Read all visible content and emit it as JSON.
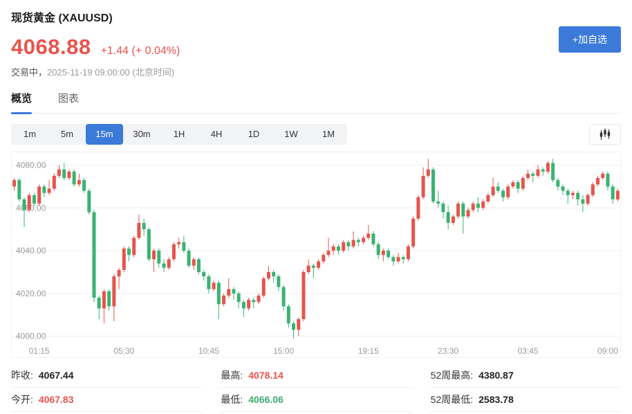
{
  "header": {
    "title": "现货黄金 (XAUUSD)",
    "price": "4068.88",
    "change": "+1.44 (+ 0.04%)",
    "status_label": "交易中，",
    "timestamp": "2025-11-19 09:00:00 (北京时间)",
    "add_watchlist_label": "+加自选"
  },
  "tabs": [
    {
      "id": "overview",
      "label": "概览",
      "active": true
    },
    {
      "id": "chart",
      "label": "图表",
      "active": false
    }
  ],
  "timeframes": [
    {
      "label": "1m",
      "active": false
    },
    {
      "label": "5m",
      "active": false
    },
    {
      "label": "15m",
      "active": true
    },
    {
      "label": "30m",
      "active": false
    },
    {
      "label": "1H",
      "active": false
    },
    {
      "label": "4H",
      "active": false
    },
    {
      "label": "1D",
      "active": false
    },
    {
      "label": "1W",
      "active": false
    },
    {
      "label": "1M",
      "active": false
    }
  ],
  "colors": {
    "accent_blue": "#3b7ad9",
    "price_red": "#ea534d",
    "text_green": "#3eac73",
    "text_black": "#222222",
    "candle_up": "#e4554d",
    "candle_down": "#3bb273"
  },
  "chart_data": {
    "type": "candlestick",
    "interval": "15m",
    "ylim": [
      3996,
      4086
    ],
    "y_ticks": [
      4080,
      4060,
      4040,
      4020,
      4000
    ],
    "y_tick_labels": [
      "4080.00",
      "4060.00",
      "4040.00",
      "4020.00",
      "4000.00"
    ],
    "x_tick_indices": [
      5,
      22,
      39,
      54,
      71,
      87,
      103,
      119
    ],
    "x_tick_labels": [
      "01:15",
      "05:30",
      "10:45",
      "15:00",
      "19:15",
      "23:30",
      "03:45",
      "09:00"
    ],
    "up_color": "#e4554d",
    "down_color": "#3bb273",
    "grid": true,
    "candles": [
      [
        4070,
        4074,
        4068,
        4073
      ],
      [
        4073,
        4074,
        4063,
        4064
      ],
      [
        4064,
        4065,
        4051,
        4059
      ],
      [
        4059,
        4067,
        4058,
        4066
      ],
      [
        4066,
        4067,
        4061,
        4062
      ],
      [
        4062,
        4071,
        4061,
        4070
      ],
      [
        4070,
        4071,
        4065,
        4067
      ],
      [
        4067,
        4073,
        4066,
        4069
      ],
      [
        4069,
        4076,
        4068,
        4075
      ],
      [
        4075,
        4080,
        4074,
        4078
      ],
      [
        4078,
        4081,
        4073,
        4074
      ],
      [
        4074,
        4078,
        4073,
        4077
      ],
      [
        4077,
        4078,
        4070,
        4071
      ],
      [
        4071,
        4076,
        4070,
        4073
      ],
      [
        4073,
        4074,
        4067,
        4068
      ],
      [
        4068,
        4069,
        4057,
        4058
      ],
      [
        4058,
        4059,
        4016,
        4018
      ],
      [
        4018,
        4019,
        4008,
        4013
      ],
      [
        4013,
        4022,
        4006,
        4021
      ],
      [
        4021,
        4022,
        4012,
        4014
      ],
      [
        4014,
        4029,
        4007,
        4028
      ],
      [
        4028,
        4032,
        4022,
        4031
      ],
      [
        4031,
        4042,
        4030,
        4041
      ],
      [
        4041,
        4042,
        4035,
        4038
      ],
      [
        4038,
        4047,
        4037,
        4046
      ],
      [
        4046,
        4057,
        4045,
        4053
      ],
      [
        4053,
        4055,
        4047,
        4050
      ],
      [
        4050,
        4051,
        4035,
        4036
      ],
      [
        4036,
        4041,
        4030,
        4040
      ],
      [
        4040,
        4041,
        4032,
        4034
      ],
      [
        4034,
        4036,
        4030,
        4032
      ],
      [
        4032,
        4037,
        4031,
        4036
      ],
      [
        4036,
        4044,
        4035,
        4043
      ],
      [
        4043,
        4046,
        4041,
        4044
      ],
      [
        4044,
        4047,
        4039,
        4040
      ],
      [
        4040,
        4041,
        4032,
        4033
      ],
      [
        4033,
        4037,
        4031,
        4036
      ],
      [
        4036,
        4037,
        4029,
        4030
      ],
      [
        4030,
        4031,
        4026,
        4028
      ],
      [
        4028,
        4029,
        4020,
        4022
      ],
      [
        4022,
        4026,
        4021,
        4025
      ],
      [
        4025,
        4026,
        4008,
        4015
      ],
      [
        4015,
        4020,
        4014,
        4019
      ],
      [
        4019,
        4027,
        4018,
        4022
      ],
      [
        4022,
        4023,
        4017,
        4020
      ],
      [
        4020,
        4021,
        4013,
        4016
      ],
      [
        4016,
        4017,
        4009,
        4013
      ],
      [
        4013,
        4018,
        4012,
        4017
      ],
      [
        4017,
        4018,
        4013,
        4016
      ],
      [
        4016,
        4020,
        4015,
        4019
      ],
      [
        4019,
        4028,
        4018,
        4027
      ],
      [
        4027,
        4033,
        4026,
        4030
      ],
      [
        4030,
        4031,
        4025,
        4028
      ],
      [
        4028,
        4029,
        4021,
        4023
      ],
      [
        4023,
        4024,
        4012,
        4014
      ],
      [
        4014,
        4015,
        4004,
        4006
      ],
      [
        4006,
        4007,
        3999,
        4003
      ],
      [
        4003,
        4009,
        4000,
        4008
      ],
      [
        4008,
        4031,
        4007,
        4030
      ],
      [
        4030,
        4036,
        4029,
        4033
      ],
      [
        4033,
        4034,
        4027,
        4032
      ],
      [
        4032,
        4036,
        4031,
        4035
      ],
      [
        4035,
        4039,
        4034,
        4038
      ],
      [
        4038,
        4046,
        4037,
        4040
      ],
      [
        4040,
        4043,
        4038,
        4042
      ],
      [
        4042,
        4043,
        4038,
        4040
      ],
      [
        4040,
        4045,
        4039,
        4044
      ],
      [
        4044,
        4045,
        4040,
        4042
      ],
      [
        4042,
        4049,
        4041,
        4045
      ],
      [
        4045,
        4046,
        4042,
        4044
      ],
      [
        4044,
        4047,
        4043,
        4046
      ],
      [
        4046,
        4052,
        4045,
        4048
      ],
      [
        4048,
        4049,
        4042,
        4043
      ],
      [
        4043,
        4044,
        4036,
        4038
      ],
      [
        4038,
        4041,
        4035,
        4040
      ],
      [
        4040,
        4041,
        4036,
        4037
      ],
      [
        4037,
        4038,
        4033,
        4035
      ],
      [
        4035,
        4039,
        4034,
        4037
      ],
      [
        4037,
        4038,
        4034,
        4036
      ],
      [
        4036,
        4043,
        4035,
        4042
      ],
      [
        4042,
        4056,
        4041,
        4055
      ],
      [
        4055,
        4066,
        4054,
        4065
      ],
      [
        4065,
        4079,
        4064,
        4075
      ],
      [
        4075,
        4083,
        4074,
        4078
      ],
      [
        4078,
        4079,
        4062,
        4063
      ],
      [
        4063,
        4068,
        4060,
        4062
      ],
      [
        4062,
        4063,
        4055,
        4058
      ],
      [
        4058,
        4061,
        4050,
        4053
      ],
      [
        4053,
        4057,
        4052,
        4056
      ],
      [
        4056,
        4063,
        4055,
        4062
      ],
      [
        4062,
        4063,
        4048,
        4056
      ],
      [
        4056,
        4060,
        4055,
        4059
      ],
      [
        4059,
        4063,
        4058,
        4062
      ],
      [
        4062,
        4065,
        4058,
        4060
      ],
      [
        4060,
        4064,
        4059,
        4063
      ],
      [
        4063,
        4067,
        4062,
        4066
      ],
      [
        4066,
        4074,
        4065,
        4070
      ],
      [
        4070,
        4072,
        4067,
        4068
      ],
      [
        4068,
        4069,
        4063,
        4065
      ],
      [
        4065,
        4071,
        4064,
        4070
      ],
      [
        4070,
        4073,
        4069,
        4072
      ],
      [
        4072,
        4073,
        4067,
        4069
      ],
      [
        4069,
        4075,
        4068,
        4074
      ],
      [
        4074,
        4078,
        4073,
        4076
      ],
      [
        4076,
        4077,
        4072,
        4075
      ],
      [
        4075,
        4080,
        4074,
        4078
      ],
      [
        4078,
        4079,
        4075,
        4077
      ],
      [
        4077,
        4082,
        4076,
        4081
      ],
      [
        4081,
        4083,
        4072,
        4073
      ],
      [
        4073,
        4074,
        4068,
        4070
      ],
      [
        4070,
        4071,
        4066,
        4068
      ],
      [
        4068,
        4069,
        4062,
        4066
      ],
      [
        4066,
        4068,
        4064,
        4067
      ],
      [
        4067,
        4068,
        4061,
        4064
      ],
      [
        4064,
        4066,
        4058,
        4062
      ],
      [
        4062,
        4067,
        4061,
        4066
      ],
      [
        4066,
        4072,
        4065,
        4071
      ],
      [
        4071,
        4075,
        4070,
        4074
      ],
      [
        4074,
        4077,
        4073,
        4076
      ],
      [
        4076,
        4077,
        4068,
        4070
      ],
      [
        4070,
        4071,
        4062,
        4064
      ],
      [
        4064,
        4069,
        4063,
        4068
      ]
    ]
  },
  "stats": {
    "columns": [
      [
        {
          "label": "昨收:",
          "value": "4067.44",
          "color": "black"
        },
        {
          "label": "今开:",
          "value": "4067.83",
          "color": "red"
        }
      ],
      [
        {
          "label": "最高:",
          "value": "4078.14",
          "color": "red"
        },
        {
          "label": "最低:",
          "value": "4066.06",
          "color": "green"
        }
      ],
      [
        {
          "label": "52周最高:",
          "value": "4380.87",
          "color": "black"
        },
        {
          "label": "52周最低:",
          "value": "2583.78",
          "color": "black"
        }
      ]
    ]
  }
}
